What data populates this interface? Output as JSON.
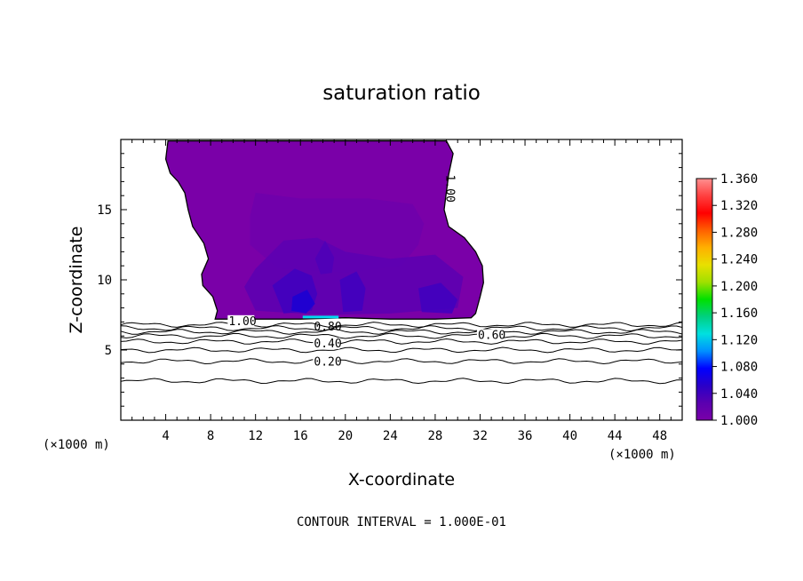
{
  "chart_data": {
    "type": "heatmap",
    "title": "saturation ratio",
    "xlabel": "X-coordinate",
    "ylabel": "Z-coordinate",
    "x_unit": "(×1000 m)",
    "x_unit_right": "(×1000 m)",
    "xlim": [
      0,
      50
    ],
    "ylim": [
      0,
      20
    ],
    "x_ticks": [
      4,
      8,
      12,
      16,
      20,
      24,
      28,
      32,
      36,
      40,
      44,
      48
    ],
    "y_ticks": [
      5,
      10,
      15
    ],
    "footer": "CONTOUR INTERVAL = 1.000E-01",
    "colorbar": {
      "ticks": [
        "1.360",
        "1.320",
        "1.280",
        "1.240",
        "1.200",
        "1.160",
        "1.120",
        "1.080",
        "1.040",
        "1.000"
      ],
      "range": [
        1.0,
        1.36
      ],
      "colors": [
        "#7a00a8",
        "#5a00b0",
        "#2a00c8",
        "#0000ff",
        "#0090ff",
        "#00e0e0",
        "#00d080",
        "#00e000",
        "#a0e000",
        "#e8e000",
        "#ffb000",
        "#ff6000",
        "#ff0000",
        "#ff4040",
        "#ff9090"
      ]
    },
    "contour_labels": [
      {
        "text": "1.00",
        "x": 9.6,
        "z": 7.1
      },
      {
        "text": "1.00",
        "x": 29.4,
        "z": 17.5,
        "rotated": true
      },
      {
        "text": "0.80",
        "x": 17.2,
        "z": 6.7
      },
      {
        "text": "0.60",
        "x": 31.8,
        "z": 6.1
      },
      {
        "text": "0.40",
        "x": 17.2,
        "z": 5.5
      },
      {
        "text": "0.20",
        "x": 17.2,
        "z": 4.2
      }
    ],
    "contour_levels_z": [
      6.8,
      6.55,
      6.3,
      6.0,
      5.6,
      5.0,
      4.2,
      2.8
    ],
    "cloud_outline": [
      [
        4.2,
        19.9
      ],
      [
        10.0,
        19.9
      ],
      [
        16.0,
        19.9
      ],
      [
        22.0,
        19.9
      ],
      [
        29.0,
        19.9
      ],
      [
        29.6,
        19.0
      ],
      [
        29.2,
        17.5
      ],
      [
        29.0,
        16.3
      ],
      [
        28.8,
        15.0
      ],
      [
        29.2,
        13.8
      ],
      [
        30.6,
        13.0
      ],
      [
        31.6,
        12.0
      ],
      [
        32.2,
        11.0
      ],
      [
        32.3,
        9.8
      ],
      [
        32.0,
        8.8
      ],
      [
        31.6,
        7.6
      ],
      [
        31.2,
        7.3
      ],
      [
        28.0,
        7.2
      ],
      [
        24.0,
        7.2
      ],
      [
        20.0,
        7.3
      ],
      [
        16.0,
        7.2
      ],
      [
        12.0,
        7.2
      ],
      [
        8.4,
        7.2
      ],
      [
        8.6,
        7.8
      ],
      [
        8.2,
        8.8
      ],
      [
        7.3,
        9.6
      ],
      [
        7.2,
        10.4
      ],
      [
        7.8,
        11.5
      ],
      [
        7.4,
        12.6
      ],
      [
        6.4,
        13.8
      ],
      [
        6.0,
        15.0
      ],
      [
        5.7,
        16.2
      ],
      [
        5.1,
        17.0
      ],
      [
        4.4,
        17.6
      ],
      [
        4.0,
        18.6
      ],
      [
        4.2,
        19.9
      ]
    ],
    "cloud_interior": [
      {
        "shape": [
          [
            12,
            16.2
          ],
          [
            16,
            15.8
          ],
          [
            22,
            15.8
          ],
          [
            26,
            15.4
          ],
          [
            27,
            14.0
          ],
          [
            26.5,
            12.5
          ],
          [
            25,
            11.0
          ],
          [
            20,
            10.5
          ],
          [
            14,
            10.8
          ],
          [
            11.5,
            12.5
          ],
          [
            11.5,
            14.5
          ]
        ],
        "level": 1.01
      },
      {
        "shape": [
          [
            12,
            10.8
          ],
          [
            14.5,
            12.8
          ],
          [
            17.5,
            13.0
          ],
          [
            20,
            12.0
          ],
          [
            24,
            11.5
          ],
          [
            28,
            11.8
          ],
          [
            30.5,
            10.2
          ],
          [
            30,
            8.0
          ],
          [
            24,
            7.6
          ],
          [
            18,
            7.5
          ],
          [
            12,
            7.8
          ],
          [
            11.0,
            9.5
          ]
        ],
        "level": 1.02
      },
      {
        "shape": [
          [
            13.5,
            9.6
          ],
          [
            15.5,
            10.8
          ],
          [
            17.0,
            10.3
          ],
          [
            17.5,
            9.0
          ],
          [
            17.0,
            7.8
          ],
          [
            14.5,
            7.6
          ]
        ],
        "level": 1.03
      },
      {
        "shape": [
          [
            19.5,
            10.0
          ],
          [
            21.0,
            10.6
          ],
          [
            21.8,
            9.4
          ],
          [
            21.5,
            7.8
          ],
          [
            19.8,
            7.7
          ]
        ],
        "level": 1.03
      },
      {
        "shape": [
          [
            26.5,
            9.4
          ],
          [
            28.5,
            9.8
          ],
          [
            30.0,
            8.6
          ],
          [
            29.5,
            7.6
          ],
          [
            26.8,
            7.7
          ]
        ],
        "level": 1.03
      },
      {
        "shape": [
          [
            17.3,
            11.5
          ],
          [
            18.2,
            12.8
          ],
          [
            19.0,
            11.6
          ],
          [
            18.8,
            10.5
          ],
          [
            17.8,
            10.4
          ]
        ],
        "level": 1.025
      },
      {
        "shape": [
          [
            15.3,
            8.8
          ],
          [
            16.6,
            9.3
          ],
          [
            17.3,
            8.3
          ],
          [
            16.5,
            7.6
          ],
          [
            15.2,
            7.8
          ]
        ],
        "level": 1.05
      }
    ],
    "cyan_segment": {
      "x": [
        16.2,
        19.4
      ],
      "z": 7.35,
      "value": 1.1
    }
  }
}
